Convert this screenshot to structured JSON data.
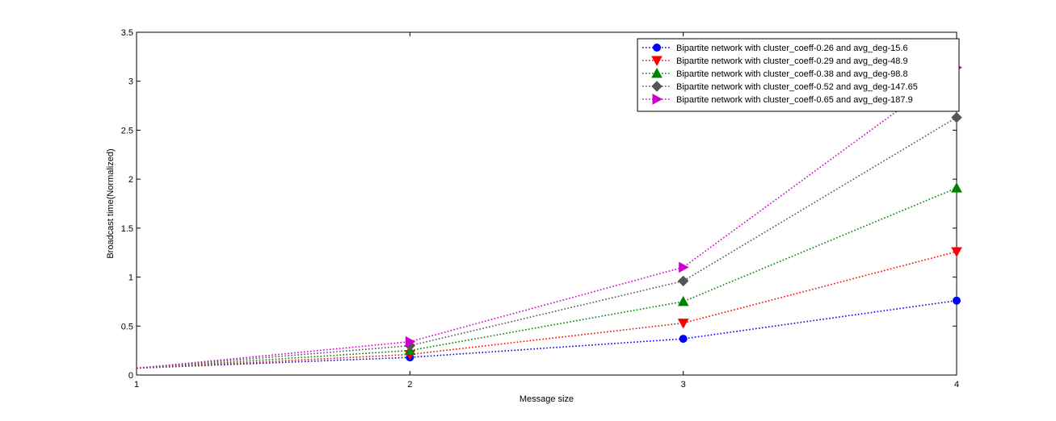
{
  "chart_data": {
    "type": "line",
    "xlabel": "Message size",
    "ylabel": "Broadcast time(Normalized)",
    "xlim": [
      1,
      4
    ],
    "ylim": [
      0,
      3.5
    ],
    "x_ticks": [
      1,
      2,
      3,
      4
    ],
    "y_ticks": [
      0,
      0.5,
      1,
      1.5,
      2,
      2.5,
      3,
      3.5
    ],
    "x_tick_labels": [
      "1",
      "2",
      "3",
      "4"
    ],
    "y_tick_labels": [
      "0",
      "0.5",
      "1",
      "1.5",
      "2",
      "2.5",
      "3",
      "3.5"
    ],
    "grid": false,
    "legend_position": "top-right",
    "x": [
      1,
      2,
      3,
      4
    ],
    "series": [
      {
        "name": "Bipartite network with cluster_coeff-0.26 and avg_deg-15.6",
        "values": [
          0.07,
          0.18,
          0.37,
          0.76
        ],
        "color": "#0000ff",
        "marker": "circle"
      },
      {
        "name": "Bipartite network with cluster_coeff-0.29 and avg_deg-48.9",
        "values": [
          0.07,
          0.21,
          0.53,
          1.26
        ],
        "color": "#ff0000",
        "marker": "triangle-down"
      },
      {
        "name": "Bipartite network with cluster_coeff-0.38 and avg_deg-98.8",
        "values": [
          0.07,
          0.25,
          0.75,
          1.91
        ],
        "color": "#008000",
        "marker": "triangle-up"
      },
      {
        "name": "Bipartite network with cluster_coeff-0.52 and avg_deg-147.65",
        "values": [
          0.07,
          0.3,
          0.96,
          2.63
        ],
        "color": "#555555",
        "marker": "diamond"
      },
      {
        "name": "Bipartite network with cluster_coeff-0.65 and avg_deg-187.9",
        "values": [
          0.07,
          0.34,
          1.1,
          3.14
        ],
        "color": "#cc00cc",
        "marker": "triangle-right"
      }
    ]
  }
}
